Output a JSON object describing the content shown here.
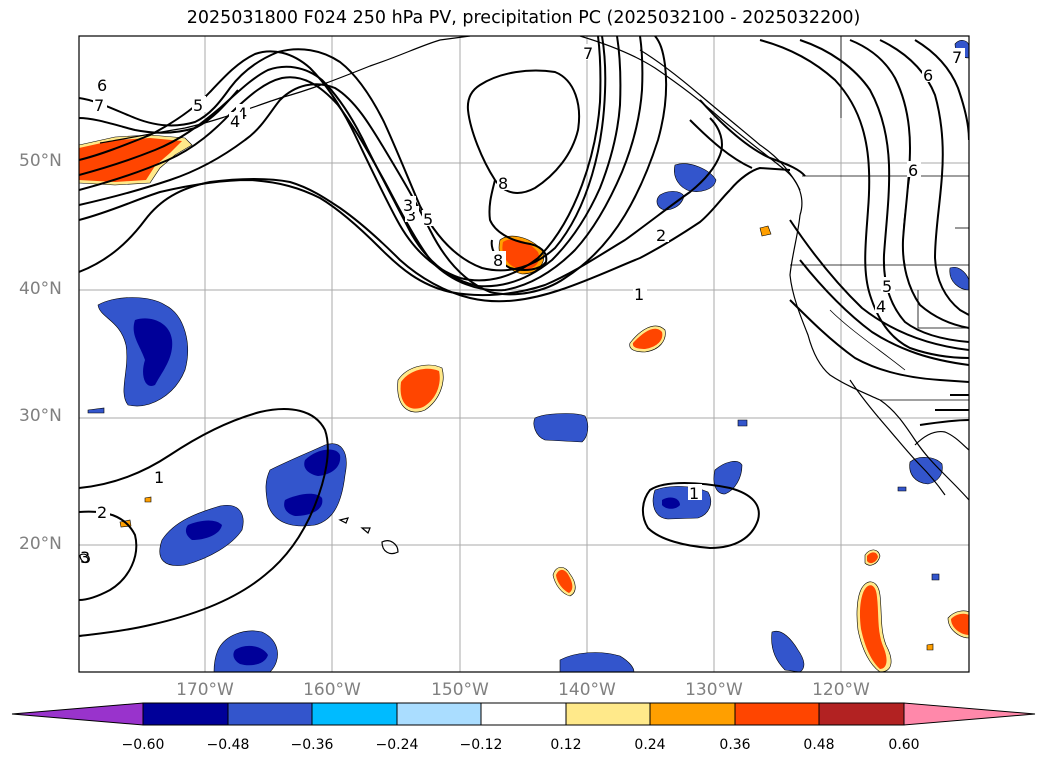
{
  "title": "2025031800 F024 250 hPa PV, precipitation PC (2025032100 - 2025032200)",
  "latitude_labels": [
    "50°N",
    "40°N",
    "30°N",
    "20°N"
  ],
  "longitude_labels": [
    "170°W",
    "160°W",
    "150°W",
    "140°W",
    "130°W",
    "120°W"
  ],
  "contour_labels": [
    "6",
    "7",
    "5",
    "4",
    "3",
    "3",
    "4",
    "5",
    "8",
    "8",
    "7",
    "2",
    "1",
    "1",
    "2",
    "1",
    "6",
    "6",
    "5",
    "4",
    "3",
    "7"
  ],
  "colorbar": {
    "tick_labels": [
      "−0.60",
      "−0.48",
      "−0.36",
      "−0.24",
      "−0.12",
      "0.12",
      "0.24",
      "0.36",
      "0.48",
      "0.60"
    ],
    "colors": [
      "#9933cc",
      "#000099",
      "#3355cc",
      "#00bbff",
      "#aaddff",
      "#ffffff",
      "#ffe98a",
      "#ff9f00",
      "#ff4500",
      "#b22222",
      "#ff88aa"
    ]
  },
  "colors": {
    "pv_contour": "#000000",
    "coastline": "#000000",
    "grid": "#aaaaaa",
    "axis_label": "#808080"
  }
}
